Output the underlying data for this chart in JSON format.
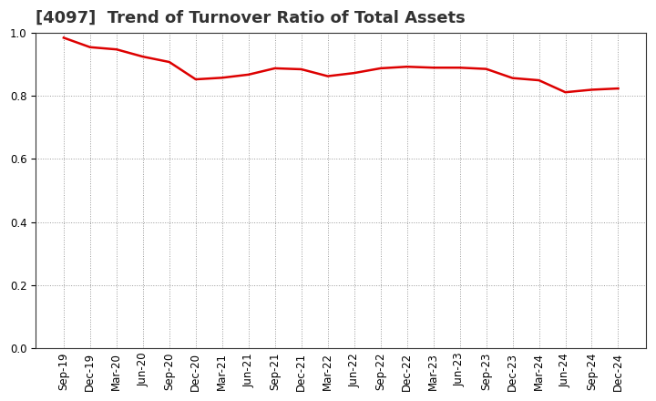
{
  "title": "[4097]  Trend of Turnover Ratio of Total Assets",
  "x_labels": [
    "Sep-19",
    "Dec-19",
    "Mar-20",
    "Jun-20",
    "Sep-20",
    "Dec-20",
    "Mar-21",
    "Jun-21",
    "Sep-21",
    "Dec-21",
    "Mar-22",
    "Jun-22",
    "Sep-22",
    "Dec-22",
    "Mar-23",
    "Jun-23",
    "Sep-23",
    "Dec-23",
    "Mar-24",
    "Jun-24",
    "Sep-24",
    "Dec-24"
  ],
  "y_values": [
    0.985,
    0.955,
    0.948,
    0.925,
    0.908,
    0.853,
    0.858,
    0.868,
    0.888,
    0.885,
    0.863,
    0.873,
    0.888,
    0.893,
    0.89,
    0.89,
    0.886,
    0.857,
    0.85,
    0.812,
    0.82,
    0.824
  ],
  "line_color": "#dd0000",
  "line_width": 1.8,
  "ylim": [
    0.0,
    1.0
  ],
  "yticks": [
    0.0,
    0.2,
    0.4,
    0.6,
    0.8,
    1.0
  ],
  "background_color": "#ffffff",
  "grid_color": "#999999",
  "title_fontsize": 13,
  "tick_fontsize": 8.5
}
